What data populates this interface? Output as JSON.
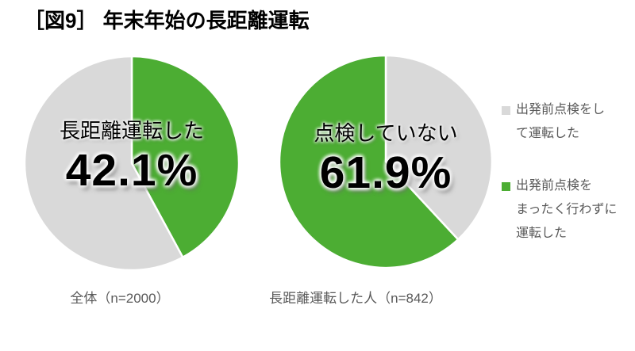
{
  "page": {
    "title": "［図9］ 年末年始の長距離運転",
    "background": "#ffffff"
  },
  "colors": {
    "green": "#4cad33",
    "gray": "#d9d9d9",
    "text_black": "#000000",
    "text_muted": "#595959"
  },
  "chart_data": [
    {
      "type": "pie",
      "caption": "全体（n=2000）",
      "callout": {
        "label": "長距離運転した",
        "value": "42.1%"
      },
      "start_angle_deg": 0,
      "direction": "clockwise",
      "slices": [
        {
          "label": "長距離運転した",
          "value": 42.1,
          "color": "#4cad33"
        },
        {
          "label": "",
          "value": 57.9,
          "color": "#d9d9d9"
        }
      ]
    },
    {
      "type": "pie",
      "caption": "長距離運転した人（n=842）",
      "callout": {
        "label": "点検していない",
        "value": "61.9%"
      },
      "start_angle_deg": 0,
      "direction": "clockwise",
      "slices": [
        {
          "label": "出発前点検をして運転した",
          "value": 38.1,
          "color": "#d9d9d9"
        },
        {
          "label": "出発前点検をまったく行わずに運転した",
          "value": 61.9,
          "color": "#4cad33"
        }
      ]
    }
  ],
  "legend": {
    "position": "right",
    "items": [
      {
        "label": "出発前点検をして運転した",
        "color": "#d9d9d9",
        "lines": [
          "出発前点検をし",
          "て運転した"
        ]
      },
      {
        "label": "出発前点検をまったく行わずに運転した",
        "color": "#4cad33",
        "lines": [
          "出発前点検を",
          "まったく行わずに",
          "運転した"
        ]
      }
    ]
  }
}
